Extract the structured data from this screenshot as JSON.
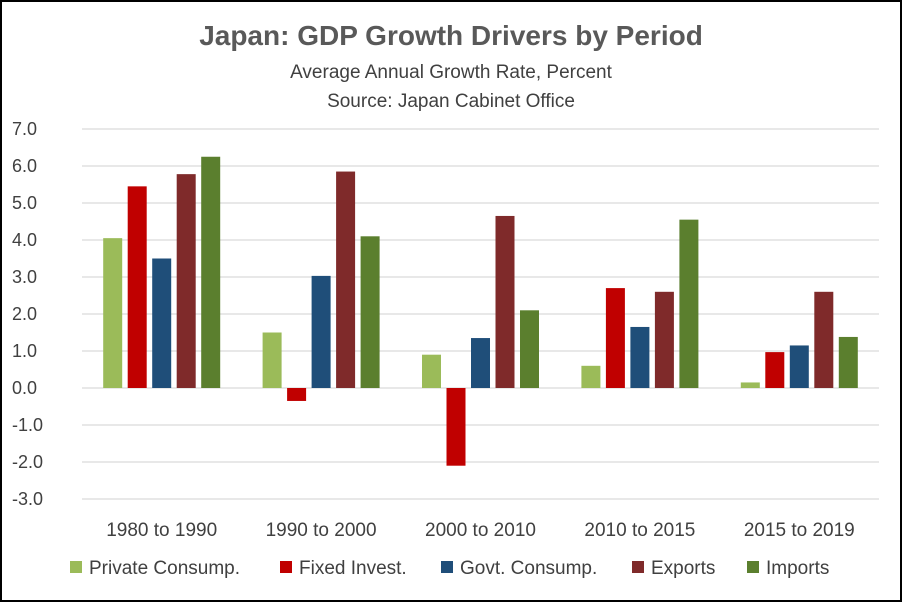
{
  "chart_data": {
    "type": "bar",
    "title": "Japan:  GDP Growth Drivers by Period",
    "subtitle": "Average Annual Growth Rate, Percent",
    "source": "Source:  Japan Cabinet Office",
    "xlabel": "",
    "ylabel": "",
    "ylim": [
      -3.0,
      7.0
    ],
    "yticks": [
      "7.0",
      "6.0",
      "5.0",
      "4.0",
      "3.0",
      "2.0",
      "1.0",
      "0.0",
      "-1.0",
      "-2.0",
      "-3.0"
    ],
    "grid": true,
    "legend_position": "bottom",
    "categories": [
      "1980 to 1990",
      "1990 to 2000",
      "2000 to 2010",
      "2010 to 2015",
      "2015 to 2019"
    ],
    "series": [
      {
        "name": "Private Consump.",
        "color": "#9BBB59",
        "values": [
          4.05,
          1.5,
          0.9,
          0.6,
          0.15
        ]
      },
      {
        "name": "Fixed Invest.",
        "color": "#C00000",
        "values": [
          5.45,
          -0.35,
          -2.1,
          2.7,
          0.97
        ]
      },
      {
        "name": "Govt. Consump.",
        "color": "#1F4E79",
        "values": [
          3.5,
          3.03,
          1.35,
          1.65,
          1.15
        ]
      },
      {
        "name": "Exports",
        "color": "#7F2A2A",
        "values": [
          5.78,
          5.85,
          4.65,
          2.6,
          2.6
        ]
      },
      {
        "name": "Imports",
        "color": "#5B7F2E",
        "values": [
          6.25,
          4.1,
          2.1,
          4.55,
          1.38
        ]
      }
    ]
  }
}
